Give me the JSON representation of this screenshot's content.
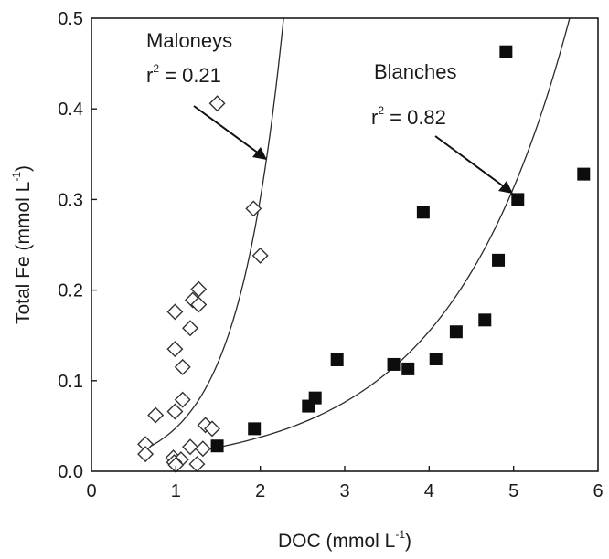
{
  "colors": {
    "maloneys_marker_fill": "#ffffff",
    "maloneys_marker_stroke": "#333333",
    "blanches_marker_fill": "#0d0d0d",
    "curve": "#2a2a2a"
  },
  "chart_data": {
    "type": "scatter",
    "xlabel": {
      "main": "DOC (mmol L",
      "sup": "-1",
      "close": ")"
    },
    "ylabel": {
      "main": "Total Fe (mmol L",
      "sup": "-1",
      "close": ")"
    },
    "xlim": [
      0,
      6
    ],
    "ylim": [
      0,
      0.5
    ],
    "xticks": [
      0,
      1,
      2,
      3,
      4,
      5,
      6
    ],
    "xtick_labels": [
      "0",
      "1",
      "2",
      "3",
      "4",
      "5",
      "6"
    ],
    "yticks": [
      0.0,
      0.1,
      0.2,
      0.3,
      0.4,
      0.5
    ],
    "ytick_labels": [
      "0.0",
      "0.1",
      "0.2",
      "0.3",
      "0.4",
      "0.5"
    ],
    "grid": false,
    "legend": "none",
    "series": [
      {
        "name": "Maloneys",
        "marker": "open-diamond",
        "points": [
          [
            1.49,
            0.406
          ],
          [
            1.92,
            0.29
          ],
          [
            2.0,
            0.238
          ],
          [
            1.27,
            0.201
          ],
          [
            1.2,
            0.189
          ],
          [
            1.27,
            0.184
          ],
          [
            0.99,
            0.176
          ],
          [
            1.17,
            0.158
          ],
          [
            0.99,
            0.135
          ],
          [
            1.08,
            0.115
          ],
          [
            1.08,
            0.079
          ],
          [
            0.99,
            0.066
          ],
          [
            0.76,
            0.062
          ],
          [
            1.35,
            0.051
          ],
          [
            1.43,
            0.047
          ],
          [
            0.64,
            0.03
          ],
          [
            1.17,
            0.027
          ],
          [
            1.32,
            0.025
          ],
          [
            0.64,
            0.019
          ],
          [
            0.97,
            0.015
          ],
          [
            1.06,
            0.013
          ],
          [
            0.98,
            0.01
          ],
          [
            1.25,
            0.008
          ],
          [
            1.0,
            0.007
          ]
        ]
      },
      {
        "name": "Blanches",
        "marker": "filled-square",
        "points": [
          [
            4.91,
            0.463
          ],
          [
            5.83,
            0.328
          ],
          [
            5.05,
            0.3
          ],
          [
            3.93,
            0.286
          ],
          [
            4.82,
            0.233
          ],
          [
            4.66,
            0.167
          ],
          [
            4.32,
            0.154
          ],
          [
            2.91,
            0.123
          ],
          [
            4.08,
            0.124
          ],
          [
            3.58,
            0.118
          ],
          [
            3.75,
            0.113
          ],
          [
            2.65,
            0.081
          ],
          [
            2.57,
            0.072
          ],
          [
            1.93,
            0.047
          ],
          [
            1.49,
            0.028
          ]
        ]
      }
    ],
    "fits": [
      {
        "series": "Maloneys",
        "curve": "exponential",
        "points": [
          [
            0.6,
            0.023
          ],
          [
            2.5,
            0.755
          ]
        ]
      },
      {
        "series": "Blanches",
        "curve": "exponential",
        "points": [
          [
            1.3,
            0.023
          ],
          [
            5.98,
            0.625
          ]
        ]
      }
    ],
    "annotations": [
      {
        "id": "maloneys-name",
        "text": "Maloneys"
      },
      {
        "id": "maloneys-r2",
        "text": "r",
        "sup": "2",
        "rest": " = 0.21"
      },
      {
        "id": "blanches-name",
        "text": "Blanches"
      },
      {
        "id": "blanches-r2",
        "text": "r",
        "sup": "2",
        "rest": " = 0.82"
      }
    ]
  }
}
